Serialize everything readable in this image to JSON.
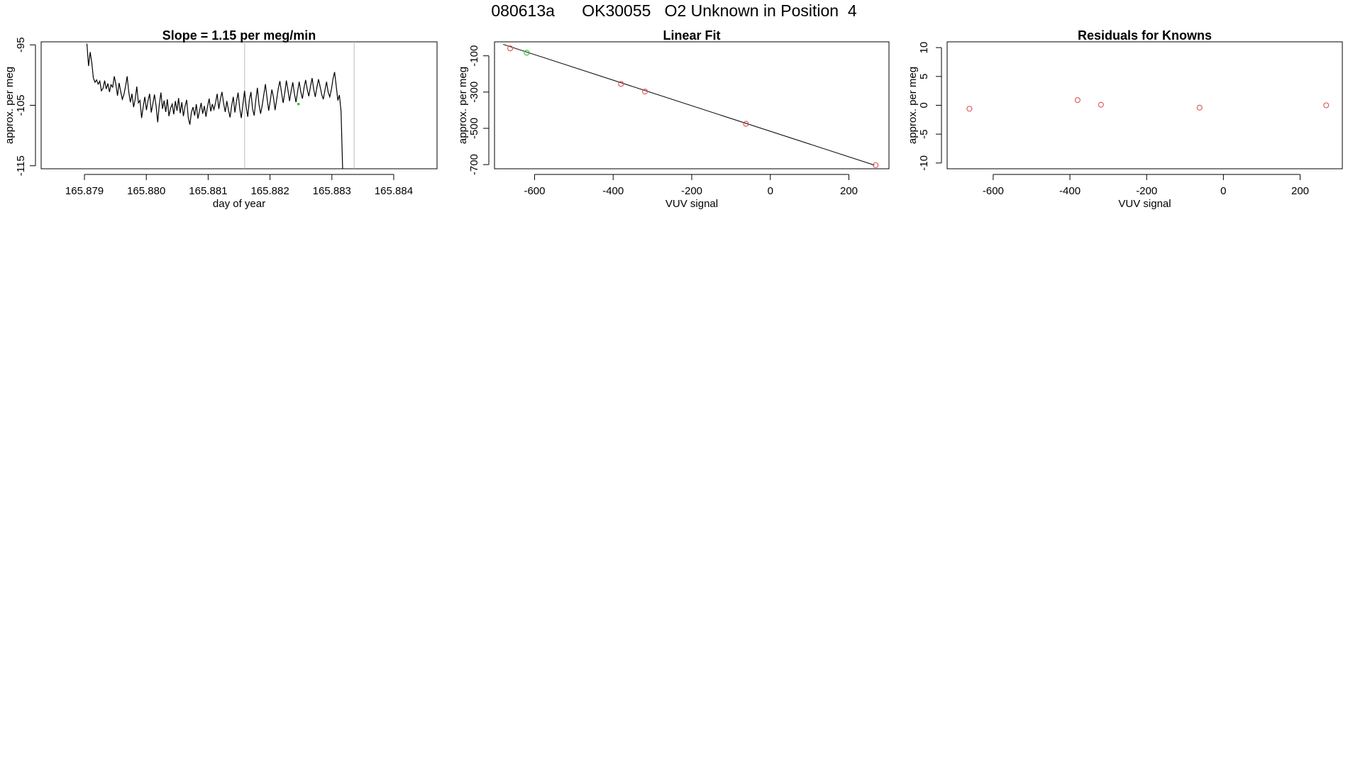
{
  "page": {
    "title": "080613a      OK30055   O2 Unknown in Position  4"
  },
  "colors": {
    "line": "#000000",
    "known_point": "#d9534f",
    "highlight_point": "#22cc22",
    "reference_line": "#bbbbbb"
  },
  "chart_data": [
    {
      "type": "line",
      "title": "Slope =  1.15  per meg/min",
      "xlabel": "day of year",
      "ylabel": "approx. per meg",
      "xlim": [
        165.8783,
        165.8847
      ],
      "ylim": [
        -115.5,
        -94.5
      ],
      "x_ticks": [
        165.879,
        165.88,
        165.881,
        165.882,
        165.883,
        165.884
      ],
      "x_tick_labels": [
        "165.879",
        "165.880",
        "165.881",
        "165.882",
        "165.883",
        "165.884"
      ],
      "y_ticks": [
        -95,
        -105,
        -115
      ],
      "y_tick_labels": [
        "-95",
        "-105",
        "-115"
      ],
      "reference_lines_x": [
        165.88159,
        165.88336
      ],
      "series": [
        {
          "x_start": 165.87904,
          "x_step": 2.6e-05,
          "values": [
            -94.8,
            -98.5,
            -96.2,
            -97.9,
            -100.5,
            -101.2,
            -100.8,
            -101.5,
            -101.0,
            -102.6,
            -102.2,
            -100.9,
            -102.3,
            -101.4,
            -102.8,
            -101.6,
            -102.0,
            -100.2,
            -101.5,
            -103.4,
            -101.3,
            -102.7,
            -104.0,
            -103.2,
            -101.9,
            -100.2,
            -102.8,
            -104.5,
            -103.1,
            -105.3,
            -104.0,
            -101.9,
            -104.6,
            -104.2,
            -107.1,
            -105.2,
            -103.6,
            -105.8,
            -104.2,
            -103.1,
            -106.2,
            -104.7,
            -103.2,
            -105.1,
            -107.8,
            -104.9,
            -102.9,
            -105.6,
            -104.2,
            -106.1,
            -104.0,
            -106.8,
            -105.5,
            -104.8,
            -106.5,
            -104.3,
            -105.9,
            -103.8,
            -106.3,
            -104.5,
            -106.8,
            -105.2,
            -104.1,
            -107.0,
            -108.2,
            -106.1,
            -105.3,
            -106.7,
            -104.8,
            -107.2,
            -106.0,
            -104.6,
            -106.4,
            -105.1,
            -106.9,
            -105.2,
            -103.9,
            -106.0,
            -104.8,
            -105.7,
            -104.5,
            -103.1,
            -105.6,
            -103.9,
            -102.8,
            -104.7,
            -106.1,
            -104.3,
            -105.8,
            -107.0,
            -105.1,
            -103.6,
            -106.2,
            -104.4,
            -102.9,
            -105.5,
            -107.1,
            -104.8,
            -102.6,
            -105.2,
            -106.9,
            -104.1,
            -102.8,
            -105.6,
            -106.7,
            -104.2,
            -102.1,
            -104.9,
            -106.4,
            -105.0,
            -103.2,
            -101.5,
            -103.8,
            -105.9,
            -104.3,
            -102.4,
            -103.7,
            -105.8,
            -104.0,
            -102.2,
            -101.0,
            -102.9,
            -104.6,
            -103.0,
            -100.9,
            -102.5,
            -104.3,
            -102.6,
            -101.2,
            -103.0,
            -104.5,
            -102.7,
            -101.1,
            -102.8,
            -103.9,
            -102.1,
            -100.8,
            -102.4,
            -103.5,
            -101.9,
            -100.5,
            -102.3,
            -103.6,
            -102.0,
            -100.7,
            -101.9,
            -103.2,
            -104.0,
            -102.5,
            -101.1,
            -102.8,
            -103.6,
            -102.4,
            -100.6,
            -99.5,
            -101.8,
            -104.2,
            -103.3,
            -106.0,
            -115.8
          ],
          "color": "#000000"
        }
      ],
      "highlight_point": {
        "x": 165.88246,
        "y": -104.8,
        "color": "#22cc22"
      }
    },
    {
      "type": "scatter",
      "title": "Linear Fit",
      "xlabel": "VUV signal",
      "ylabel": "approx. per meg",
      "xlim": [
        -702,
        302
      ],
      "ylim": [
        -723,
        -23
      ],
      "x_ticks": [
        -600,
        -400,
        -200,
        0,
        200
      ],
      "x_tick_labels": [
        "-600",
        "-400",
        "-200",
        "0",
        "200"
      ],
      "y_ticks": [
        -100,
        -300,
        -500,
        -700
      ],
      "y_tick_labels": [
        "-100",
        "-300",
        "-500",
        "-700"
      ],
      "fit_line": {
        "x": [
          -680,
          265
        ],
        "y": [
          -37,
          -703
        ]
      },
      "knowns": {
        "x": [
          -662,
          -380,
          -319,
          -62,
          268
        ],
        "y": [
          -59,
          -255,
          -297,
          -475,
          -703
        ],
        "color": "#d9534f"
      },
      "unknown": {
        "x": [
          -620
        ],
        "y": [
          -83
        ],
        "color": "#22cc22"
      }
    },
    {
      "type": "scatter",
      "title": "Residuals for Knowns",
      "xlabel": "VUV signal",
      "ylabel": "approx. per meg",
      "xlim": [
        -720,
        310
      ],
      "ylim": [
        -11,
        11
      ],
      "x_ticks": [
        -600,
        -400,
        -200,
        0,
        200
      ],
      "x_tick_labels": [
        "-600",
        "-400",
        "-200",
        "0",
        "200"
      ],
      "y_ticks": [
        10,
        5,
        0,
        -5,
        -10
      ],
      "y_tick_labels": [
        "10",
        "5",
        "0",
        "-5",
        "-10"
      ],
      "knowns": {
        "x": [
          -662,
          -380,
          -319,
          -62,
          268
        ],
        "y": [
          -0.6,
          0.9,
          0.1,
          -0.4,
          0.0
        ],
        "color": "#d9534f"
      }
    }
  ]
}
